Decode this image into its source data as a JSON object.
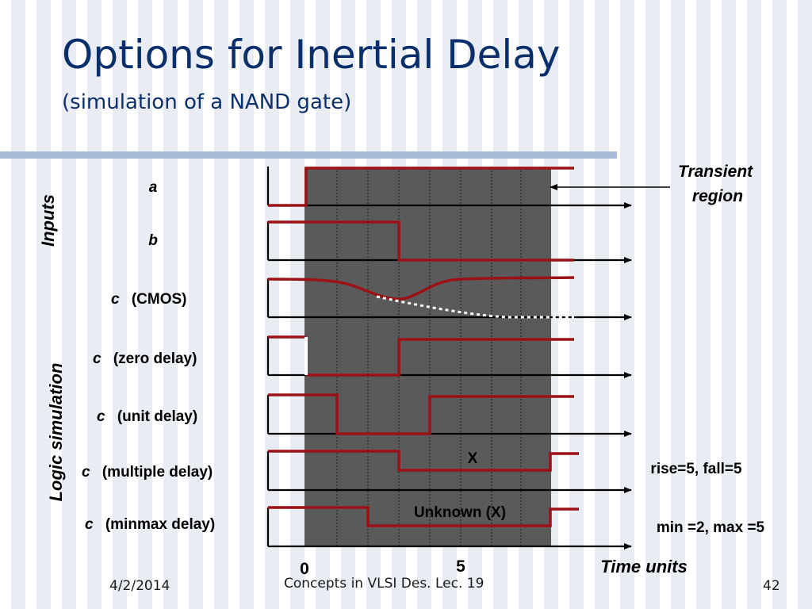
{
  "slide": {
    "title": "Options for Inertial Delay",
    "subtitle": "(simulation of a NAND gate)"
  },
  "groups": {
    "inputs": "Inputs",
    "logic": "Logic simulation"
  },
  "signals": {
    "a": {
      "name": "a",
      "suffix": ""
    },
    "b": {
      "name": "b",
      "suffix": ""
    },
    "c_cmos": {
      "name": "c",
      "suffix": "(CMOS)"
    },
    "c_zero": {
      "name": "c",
      "suffix": "(zero delay)"
    },
    "c_unit": {
      "name": "c",
      "suffix": "(unit delay)"
    },
    "c_multi": {
      "name": "c",
      "suffix": "(multiple delay)"
    },
    "c_minmax": {
      "name": "c",
      "suffix": "(minmax delay)"
    }
  },
  "annotations": {
    "transient": [
      "Transient",
      "region"
    ],
    "x_multi": "X",
    "unknown": "Unknown (X)",
    "rise_fall": "rise=5, fall=5",
    "min_max": "min =2, max =5"
  },
  "time_axis": {
    "tick_0": "0",
    "tick_5": "5",
    "label": "Time units"
  },
  "colors": {
    "waveform": "#9b1115",
    "shade": "#5a5a5a",
    "title": "#0b2f6a"
  },
  "footer": {
    "date": "4/2/2014",
    "title": "Concepts in VLSI Des. Lec. 19",
    "page": "42"
  }
}
